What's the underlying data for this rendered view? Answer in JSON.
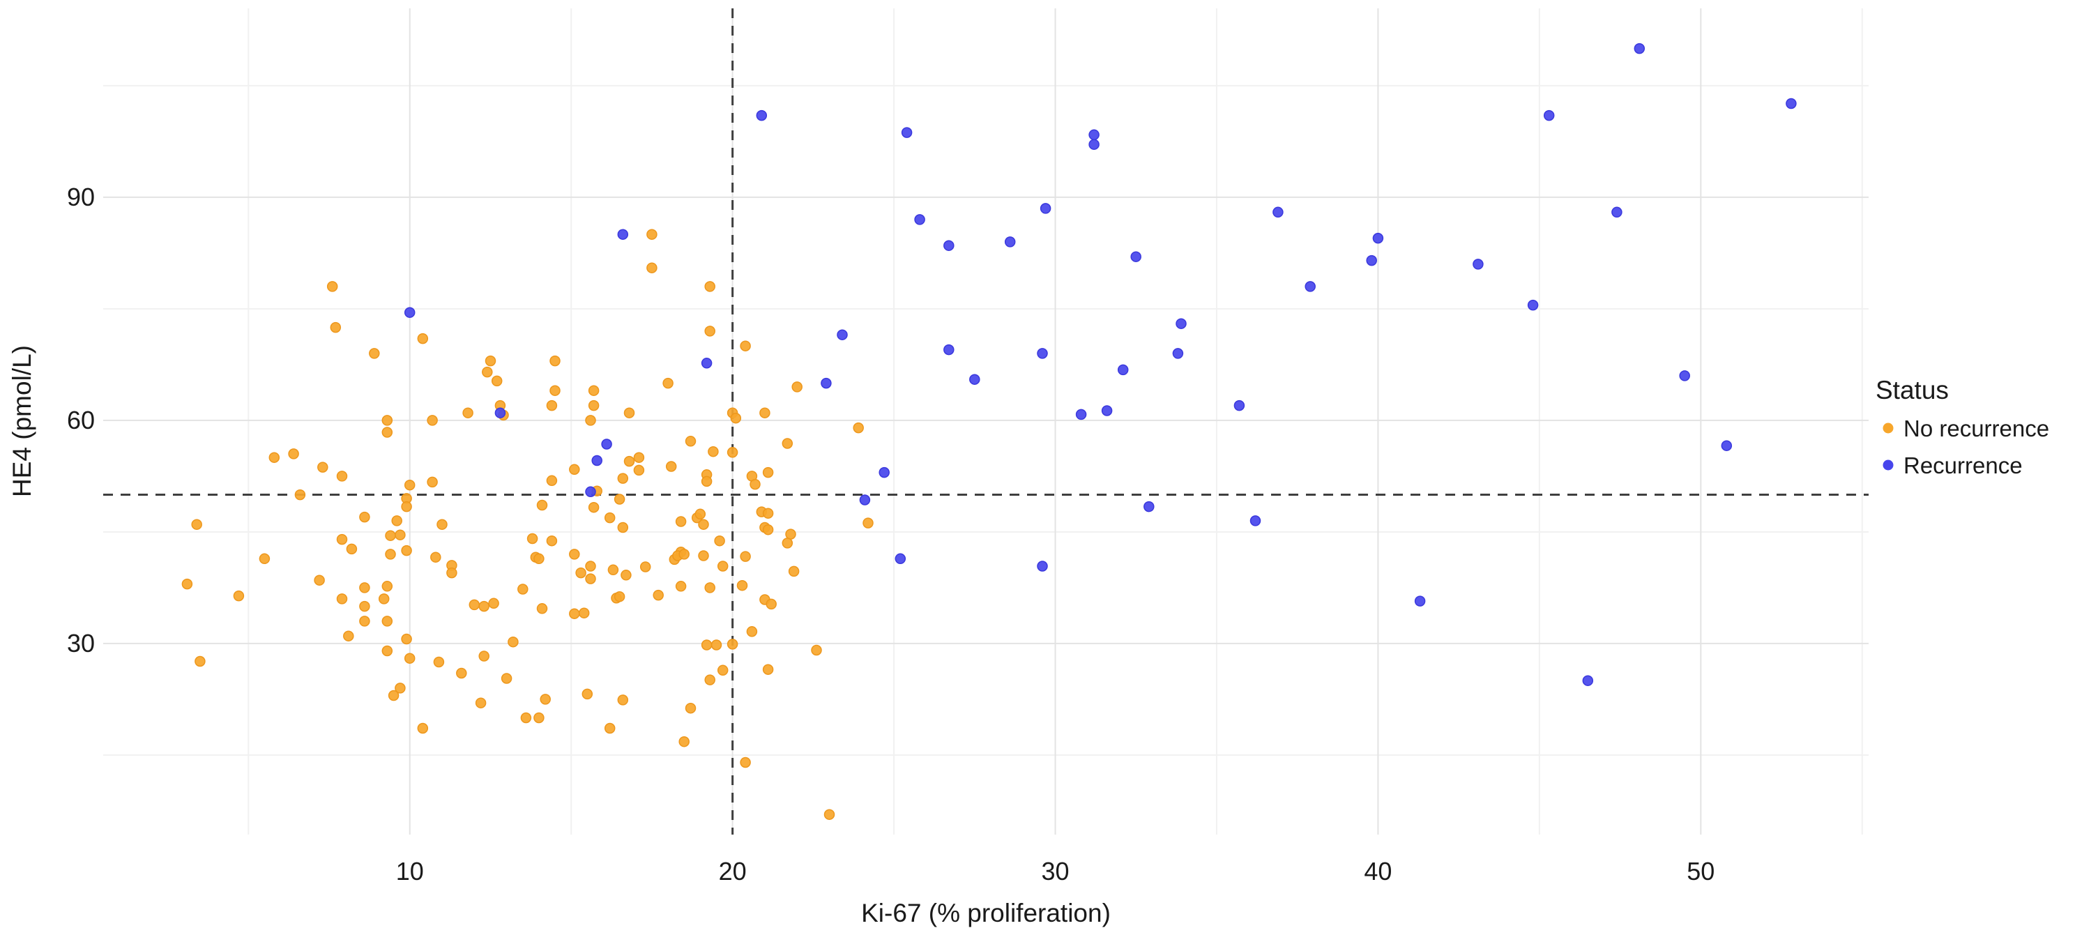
{
  "legend": {
    "title": "Status",
    "items": [
      {
        "label": "No recurrence",
        "color": "#F7A62B"
      },
      {
        "label": "Recurrence",
        "color": "#4745EC"
      }
    ]
  },
  "chart_data": {
    "type": "scatter",
    "title": "",
    "xlabel": "Ki-67 (% proliferation)",
    "ylabel": "HE4 (pmol/L)",
    "xlim": [
      0.5,
      55.2
    ],
    "ylim": [
      4.3,
      115.4
    ],
    "x_ticks": [
      10,
      20,
      30,
      40,
      50
    ],
    "y_ticks": [
      30,
      60,
      90
    ],
    "x_minor_ticks": [
      5,
      15,
      25,
      35,
      45,
      55
    ],
    "y_minor_ticks": [
      15,
      45,
      75,
      105
    ],
    "grid": "on",
    "legend_position": "right",
    "reference_lines": {
      "vertical_x": 20,
      "horizontal_y": 50,
      "style": "dashed",
      "color": "#3f3f3f"
    },
    "series": [
      {
        "name": "No recurrence",
        "color": "#F7A62B",
        "stroke": "#ED971C",
        "points": [
          [
            7.6,
            78
          ],
          [
            7.7,
            72.5
          ],
          [
            8.9,
            69
          ],
          [
            10.4,
            71
          ],
          [
            12.5,
            68
          ],
          [
            12.4,
            66.5
          ],
          [
            12.7,
            65.3
          ],
          [
            14.5,
            68
          ],
          [
            14.5,
            64
          ],
          [
            12.8,
            62
          ],
          [
            14.4,
            62
          ],
          [
            11.8,
            61
          ],
          [
            9.3,
            60
          ],
          [
            10.7,
            60
          ],
          [
            12.9,
            60.7
          ],
          [
            17.5,
            85
          ],
          [
            17.5,
            80.5
          ],
          [
            19.3,
            78
          ],
          [
            19.3,
            72
          ],
          [
            20.4,
            70
          ],
          [
            22,
            64.5
          ],
          [
            18,
            65
          ],
          [
            15.7,
            64
          ],
          [
            15.7,
            62
          ],
          [
            15.6,
            60
          ],
          [
            16.8,
            61
          ],
          [
            20,
            61
          ],
          [
            20.1,
            60.3
          ],
          [
            21,
            61
          ],
          [
            23.9,
            59
          ],
          [
            18.7,
            57.2
          ],
          [
            19.4,
            55.8
          ],
          [
            20,
            55.7
          ],
          [
            21.7,
            56.9
          ],
          [
            9.3,
            58.4
          ],
          [
            5.8,
            55
          ],
          [
            6.4,
            55.5
          ],
          [
            7.3,
            53.7
          ],
          [
            7.9,
            52.5
          ],
          [
            15.1,
            53.4
          ],
          [
            16.8,
            54.5
          ],
          [
            17.1,
            55
          ],
          [
            17.1,
            53.3
          ],
          [
            16.6,
            52.2
          ],
          [
            18.1,
            53.8
          ],
          [
            20.6,
            52.5
          ],
          [
            21.1,
            53
          ],
          [
            20.7,
            51.4
          ],
          [
            19.2,
            52.7
          ],
          [
            19.2,
            51.8
          ],
          [
            10,
            51.3
          ],
          [
            10.7,
            51.7
          ],
          [
            14.4,
            51.9
          ],
          [
            15.8,
            50.5
          ],
          [
            16.5,
            49.4
          ],
          [
            6.6,
            50
          ],
          [
            9.9,
            49.5
          ],
          [
            14.1,
            48.6
          ],
          [
            15.7,
            48.3
          ],
          [
            9.9,
            48.4
          ],
          [
            20.9,
            47.7
          ],
          [
            21.1,
            47.5
          ],
          [
            8.6,
            47
          ],
          [
            9.6,
            46.5
          ],
          [
            16.2,
            46.9
          ],
          [
            16.6,
            45.6
          ],
          [
            18.9,
            46.9
          ],
          [
            19,
            47.4
          ],
          [
            19.1,
            46
          ],
          [
            18.4,
            46.4
          ],
          [
            11,
            46
          ],
          [
            3.4,
            46
          ],
          [
            24.2,
            46.2
          ],
          [
            21,
            45.6
          ],
          [
            21.1,
            45.3
          ],
          [
            9.4,
            44.5
          ],
          [
            9.7,
            44.6
          ],
          [
            7.9,
            44
          ],
          [
            21.8,
            44.7
          ],
          [
            19.6,
            43.8
          ],
          [
            14.4,
            43.8
          ],
          [
            13.8,
            44.1
          ],
          [
            21.7,
            43.5
          ],
          [
            8.2,
            42.7
          ],
          [
            9.9,
            42.5
          ],
          [
            9.4,
            42
          ],
          [
            18.4,
            42.3
          ],
          [
            18.2,
            41.3
          ],
          [
            18.3,
            41.8
          ],
          [
            18.5,
            42
          ],
          [
            19.1,
            41.8
          ],
          [
            13.9,
            41.6
          ],
          [
            14,
            41.4
          ],
          [
            20.4,
            41.7
          ],
          [
            10.8,
            41.6
          ],
          [
            5.5,
            41.4
          ],
          [
            15.1,
            42
          ],
          [
            19.7,
            40.4
          ],
          [
            16.3,
            39.9
          ],
          [
            16.7,
            39.2
          ],
          [
            17.3,
            40.3
          ],
          [
            15.6,
            40.4
          ],
          [
            15.3,
            39.5
          ],
          [
            11.3,
            40.5
          ],
          [
            11.3,
            39.5
          ],
          [
            21.9,
            39.7
          ],
          [
            15.6,
            38.7
          ],
          [
            7.2,
            38.5
          ],
          [
            3.1,
            38
          ],
          [
            18.4,
            37.7
          ],
          [
            19.3,
            37.5
          ],
          [
            8.6,
            37.5
          ],
          [
            9.3,
            37.7
          ],
          [
            13.5,
            37.3
          ],
          [
            20.3,
            37.8
          ],
          [
            4.7,
            36.4
          ],
          [
            17.7,
            36.5
          ],
          [
            16.4,
            36.1
          ],
          [
            16.5,
            36.3
          ],
          [
            9.2,
            36
          ],
          [
            7.9,
            36
          ],
          [
            21,
            35.9
          ],
          [
            21.2,
            35.3
          ],
          [
            12.3,
            35
          ],
          [
            12.6,
            35.4
          ],
          [
            12,
            35.2
          ],
          [
            8.6,
            35
          ],
          [
            14.1,
            34.7
          ],
          [
            15.1,
            34
          ],
          [
            15.4,
            34.1
          ],
          [
            8.6,
            33
          ],
          [
            9.3,
            33
          ],
          [
            20.6,
            31.6
          ],
          [
            8.1,
            31
          ],
          [
            13.2,
            30.2
          ],
          [
            9.9,
            30.6
          ],
          [
            19.2,
            29.8
          ],
          [
            19.5,
            29.8
          ],
          [
            20,
            29.9
          ],
          [
            9.3,
            29
          ],
          [
            22.6,
            29.1
          ],
          [
            12.3,
            28.3
          ],
          [
            10,
            28
          ],
          [
            3.5,
            27.6
          ],
          [
            10.9,
            27.5
          ],
          [
            21.1,
            26.5
          ],
          [
            19.7,
            26.4
          ],
          [
            11.6,
            26
          ],
          [
            13,
            25.3
          ],
          [
            19.3,
            25.1
          ],
          [
            9.7,
            24
          ],
          [
            9.5,
            23
          ],
          [
            14.2,
            22.5
          ],
          [
            16.6,
            22.4
          ],
          [
            15.5,
            23.2
          ],
          [
            12.2,
            22
          ],
          [
            18.7,
            21.3
          ],
          [
            13.6,
            20
          ],
          [
            14,
            20
          ],
          [
            10.4,
            18.6
          ],
          [
            16.2,
            18.6
          ],
          [
            18.5,
            16.8
          ],
          [
            20.4,
            14
          ],
          [
            23,
            7
          ]
        ]
      },
      {
        "name": "Recurrence",
        "color": "#4745EC",
        "stroke": "#3A38DD",
        "points": [
          [
            10,
            74.5
          ],
          [
            12.8,
            61
          ],
          [
            15.6,
            50.4
          ],
          [
            15.8,
            54.6
          ],
          [
            16.1,
            56.8
          ],
          [
            16.6,
            85
          ],
          [
            19.2,
            67.7
          ],
          [
            20.9,
            101
          ],
          [
            22.9,
            65
          ],
          [
            23.4,
            71.5
          ],
          [
            24.1,
            49.3
          ],
          [
            24.7,
            53
          ],
          [
            25.2,
            41.4
          ],
          [
            25.4,
            98.7
          ],
          [
            25.8,
            87
          ],
          [
            26.7,
            83.5
          ],
          [
            26.7,
            69.5
          ],
          [
            27.5,
            65.5
          ],
          [
            28.6,
            84
          ],
          [
            29.6,
            69
          ],
          [
            29.6,
            40.4
          ],
          [
            29.7,
            88.5
          ],
          [
            30.8,
            60.8
          ],
          [
            31.2,
            98.4
          ],
          [
            31.2,
            97.1
          ],
          [
            31.6,
            61.3
          ],
          [
            32.1,
            66.8
          ],
          [
            32.5,
            82
          ],
          [
            32.9,
            48.4
          ],
          [
            33.8,
            69
          ],
          [
            33.9,
            73
          ],
          [
            35.7,
            62
          ],
          [
            36.2,
            46.5
          ],
          [
            36.9,
            88
          ],
          [
            37.9,
            78
          ],
          [
            39.8,
            81.5
          ],
          [
            40,
            84.5
          ],
          [
            41.3,
            35.7
          ],
          [
            43.1,
            81
          ],
          [
            44.8,
            75.5
          ],
          [
            45.3,
            101
          ],
          [
            46.5,
            25
          ],
          [
            47.4,
            88
          ],
          [
            48.1,
            110
          ],
          [
            49.5,
            66
          ],
          [
            50.8,
            56.6
          ],
          [
            52.8,
            102.6
          ]
        ]
      }
    ]
  }
}
